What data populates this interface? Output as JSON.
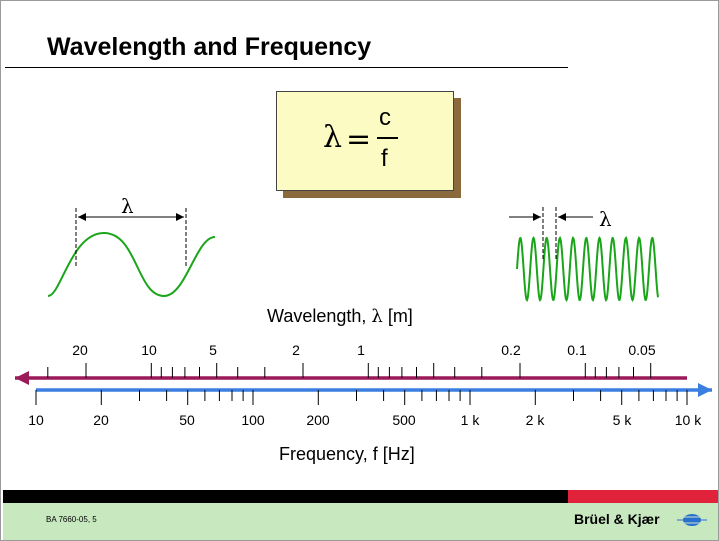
{
  "slide": {
    "title": "Wavelength and Frequency",
    "formula": {
      "lhs": "λ",
      "equals": "=",
      "numerator": "c",
      "denominator": "f"
    },
    "lambda_symbol": "λ",
    "wavelength_axis": {
      "label_text": "Wavelength, ",
      "label_symbol": "λ",
      "label_unit": " [m]",
      "tick_labels": [
        "20",
        "10",
        "5",
        "2",
        "1",
        "0.2",
        "0.1",
        "0.05"
      ]
    },
    "frequency_axis": {
      "label": "Frequency, f [Hz]",
      "tick_labels": [
        "10",
        "20",
        "50",
        "100",
        "200",
        "500",
        "1 k",
        "2 k",
        "5 k",
        "10 k"
      ]
    },
    "footer": {
      "doc_id": "BA 7660-05, 5",
      "brand": "Brüel & Kjær"
    },
    "colors": {
      "wave": "#1aa51a",
      "wavelength_arrow": "#9b1a5a",
      "frequency_arrow": "#3a7fe0",
      "formula_fill": "#fdfbc4",
      "formula_shadow": "#8a6a3c",
      "footer_black": "#000000",
      "footer_red": "#e0233a",
      "footer_green": "#c8e8c0",
      "logo": "#2a6fd0"
    },
    "icons": [
      "brand-logo-icon"
    ]
  }
}
